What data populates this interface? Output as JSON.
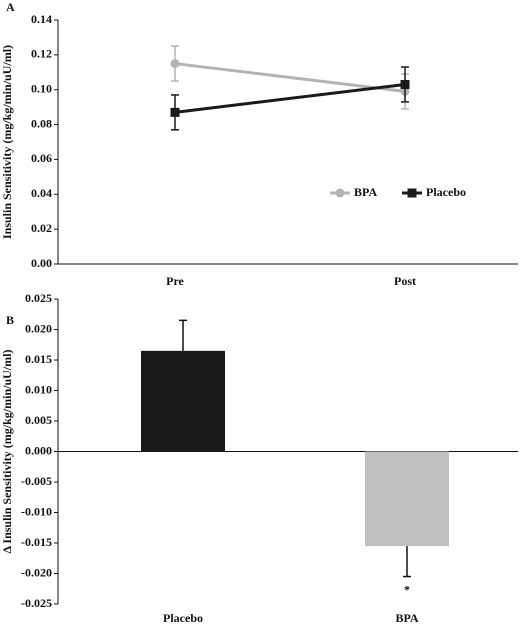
{
  "chart_data": [
    {
      "type": "line",
      "panel": "A",
      "y_label": "Insulin Sensitivity (mg/kg/min/uU/ml)",
      "categories": [
        "Pre",
        "Post"
      ],
      "series": [
        {
          "name": "BPA",
          "color": "#b3b3b3",
          "marker": "circle",
          "values": [
            0.115,
            0.099
          ],
          "errors": [
            0.01,
            0.01
          ]
        },
        {
          "name": "Placebo",
          "color": "#1a1a1a",
          "marker": "square",
          "values": [
            0.087,
            0.103
          ],
          "errors": [
            0.01,
            0.01
          ]
        }
      ],
      "ylim": [
        0,
        0.14
      ],
      "yticks": [
        {
          "value": 0,
          "label": "0.00"
        },
        {
          "value": 0.02,
          "label": "0.02"
        },
        {
          "value": 0.04,
          "label": "0.04"
        },
        {
          "value": 0.06,
          "label": "0.06"
        },
        {
          "value": 0.08,
          "label": "0.08"
        },
        {
          "value": 0.1,
          "label": "0.10"
        },
        {
          "value": 0.12,
          "label": "0.12"
        },
        {
          "value": 0.14,
          "label": "0.14"
        }
      ],
      "legend": "right",
      "grid": false
    },
    {
      "type": "bar",
      "panel": "B",
      "y_label": "Δ Insulin Sensitivity (mg/kg/min/uU/ml)",
      "categories": [
        "Placebo",
        "BPA"
      ],
      "values": [
        0.0165,
        -0.0155
      ],
      "errors": [
        0.005,
        0.005
      ],
      "colors": [
        "#1a1a1a",
        "#bfbfbf"
      ],
      "annotation": "*",
      "ylim": [
        -0.025,
        0.025
      ],
      "yticks": [
        {
          "value": 0.025,
          "label": "0.025"
        },
        {
          "value": 0.02,
          "label": "0.020"
        },
        {
          "value": 0.015,
          "label": "0.015"
        },
        {
          "value": 0.01,
          "label": "0.010"
        },
        {
          "value": 0.005,
          "label": "0.005"
        },
        {
          "value": 0,
          "label": "0.000"
        },
        {
          "value": -0.005,
          "label": "-0.005"
        },
        {
          "value": -0.01,
          "label": "-0.010"
        },
        {
          "value": -0.015,
          "label": "-0.015"
        },
        {
          "value": -0.02,
          "label": "-0.020"
        },
        {
          "value": -0.025,
          "label": "-0.025"
        }
      ],
      "grid": false
    }
  ]
}
